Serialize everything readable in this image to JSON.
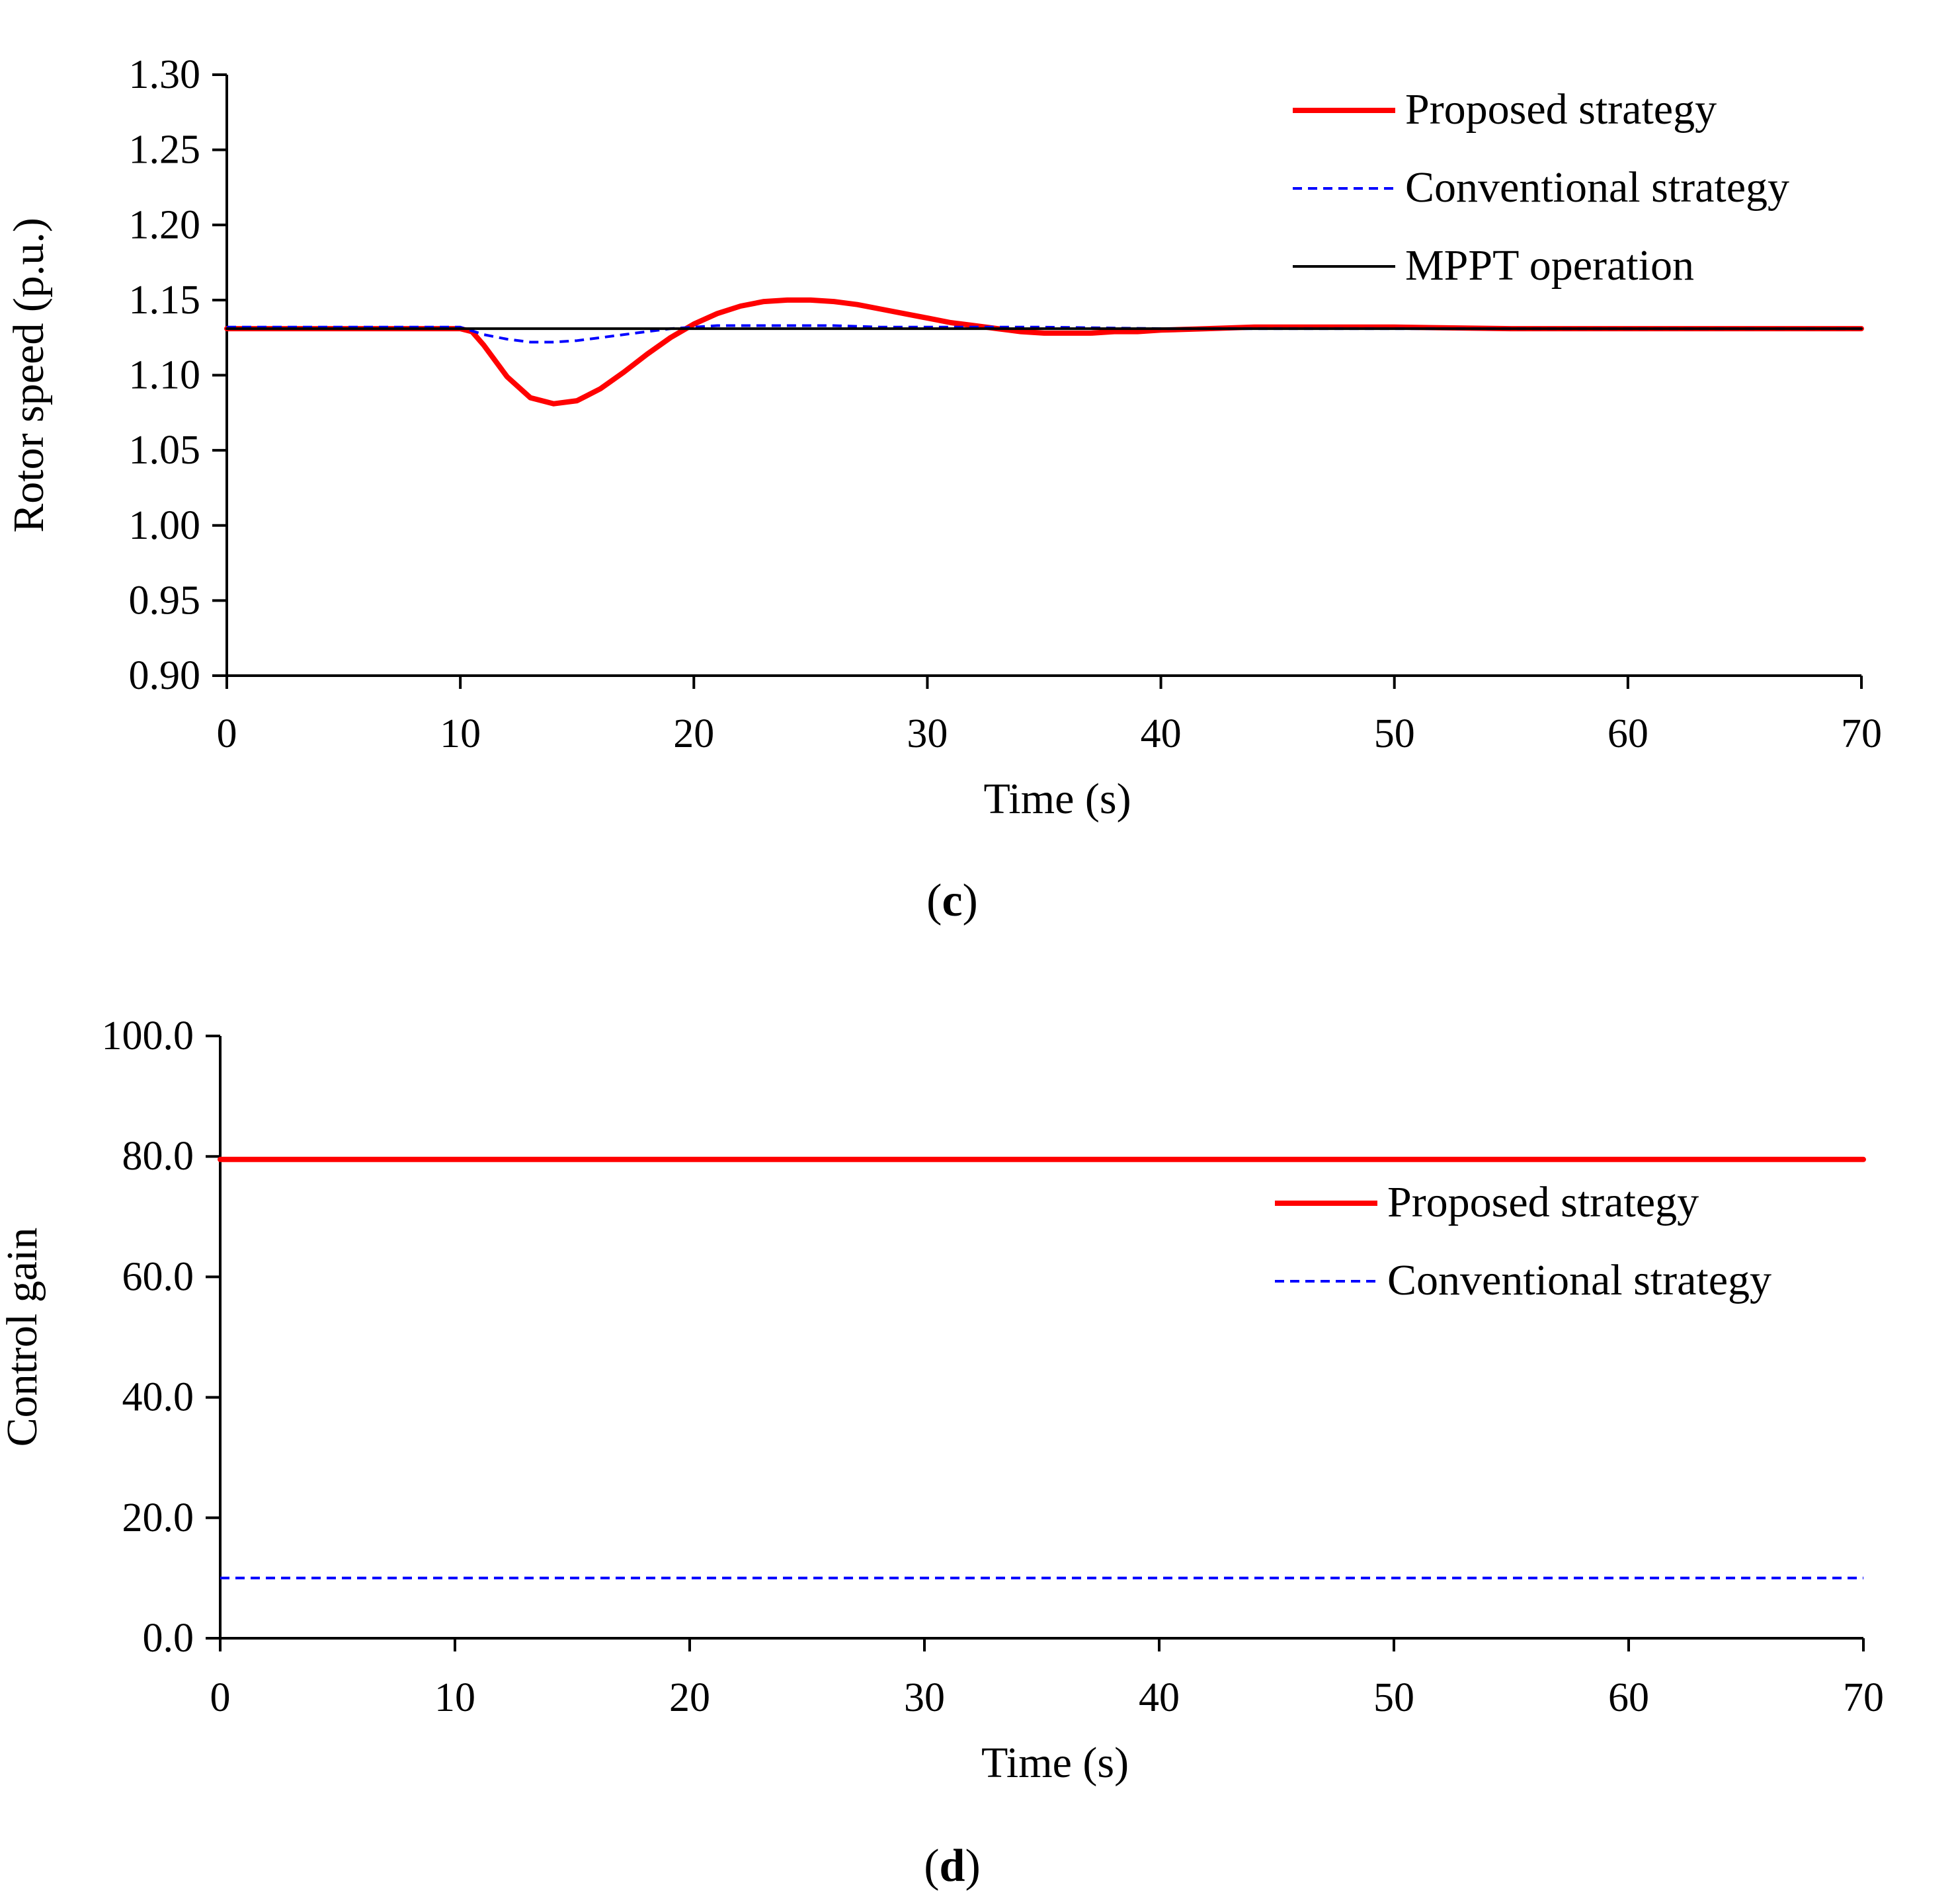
{
  "chart_data": [
    {
      "id": "c",
      "type": "line",
      "caption_letter": "c",
      "caption_open": "(",
      "caption_close": ")",
      "xlabel": "Time (s)",
      "ylabel": "Rotor speed (p.u.)",
      "xlim": [
        0,
        70
      ],
      "ylim": [
        0.9,
        1.3
      ],
      "xticks": [
        0,
        10,
        20,
        30,
        40,
        50,
        60,
        70
      ],
      "xtick_labels": [
        "0",
        "10",
        "20",
        "30",
        "40",
        "50",
        "60",
        "70"
      ],
      "yticks": [
        0.9,
        0.95,
        1.0,
        1.05,
        1.1,
        1.15,
        1.2,
        1.25,
        1.3
      ],
      "ytick_labels": [
        "0.90",
        "0.95",
        "1.00",
        "1.05",
        "1.10",
        "1.15",
        "1.20",
        "1.25",
        "1.30"
      ],
      "grid": false,
      "legend_position": "top-right",
      "series": [
        {
          "name": "Proposed strategy",
          "color": "#ff0000",
          "style": "solid",
          "x": [
            0,
            10,
            10.5,
            11,
            12,
            13,
            14,
            15,
            16,
            17,
            18,
            19,
            20,
            21,
            22,
            23,
            24,
            25,
            26,
            27,
            28,
            29,
            30,
            31,
            32,
            33,
            34,
            35,
            36,
            37,
            38,
            39,
            40,
            42,
            44,
            46,
            48,
            50,
            55,
            60,
            65,
            70
          ],
          "y": [
            1.131,
            1.131,
            1.129,
            1.12,
            1.099,
            1.085,
            1.081,
            1.083,
            1.091,
            1.102,
            1.114,
            1.125,
            1.134,
            1.141,
            1.146,
            1.149,
            1.15,
            1.15,
            1.149,
            1.147,
            1.144,
            1.141,
            1.138,
            1.135,
            1.133,
            1.131,
            1.129,
            1.128,
            1.128,
            1.128,
            1.129,
            1.129,
            1.13,
            1.131,
            1.132,
            1.132,
            1.132,
            1.132,
            1.131,
            1.131,
            1.131,
            1.131
          ]
        },
        {
          "name": "Conventional strategy",
          "color": "#0000ff",
          "style": "dashed",
          "x": [
            0,
            10,
            11,
            12,
            13,
            14,
            15,
            16,
            17,
            18,
            19,
            20,
            21,
            22,
            24,
            26,
            28,
            30,
            35,
            40,
            50,
            60,
            70
          ],
          "y": [
            1.132,
            1.132,
            1.127,
            1.124,
            1.122,
            1.122,
            1.123,
            1.125,
            1.127,
            1.129,
            1.131,
            1.132,
            1.133,
            1.133,
            1.133,
            1.133,
            1.132,
            1.132,
            1.132,
            1.131,
            1.131,
            1.131,
            1.131
          ]
        },
        {
          "name": "MPPT operation",
          "color": "#000000",
          "style": "solid",
          "x": [
            0,
            70
          ],
          "y": [
            1.131,
            1.131
          ]
        }
      ]
    },
    {
      "id": "d",
      "type": "line",
      "caption_letter": "d",
      "caption_open": "(",
      "caption_close": ")",
      "xlabel": "Time (s)",
      "ylabel": "Control gain",
      "xlim": [
        0,
        70
      ],
      "ylim": [
        0,
        100
      ],
      "xticks": [
        0,
        10,
        20,
        30,
        40,
        50,
        60,
        70
      ],
      "xtick_labels": [
        "0",
        "10",
        "20",
        "30",
        "40",
        "50",
        "60",
        "70"
      ],
      "yticks": [
        0,
        20,
        40,
        60,
        80,
        100
      ],
      "ytick_labels": [
        "0.0",
        "20.0",
        "40.0",
        "60.0",
        "80.0",
        "100.0"
      ],
      "grid": false,
      "legend_position": "top-right",
      "series": [
        {
          "name": "Proposed strategy",
          "color": "#ff0000",
          "style": "solid",
          "x": [
            0,
            70
          ],
          "y": [
            79.5,
            79.5
          ]
        },
        {
          "name": "Conventional strategy",
          "color": "#0000ff",
          "style": "dashed",
          "x": [
            0,
            70
          ],
          "y": [
            10,
            10
          ]
        }
      ]
    }
  ]
}
